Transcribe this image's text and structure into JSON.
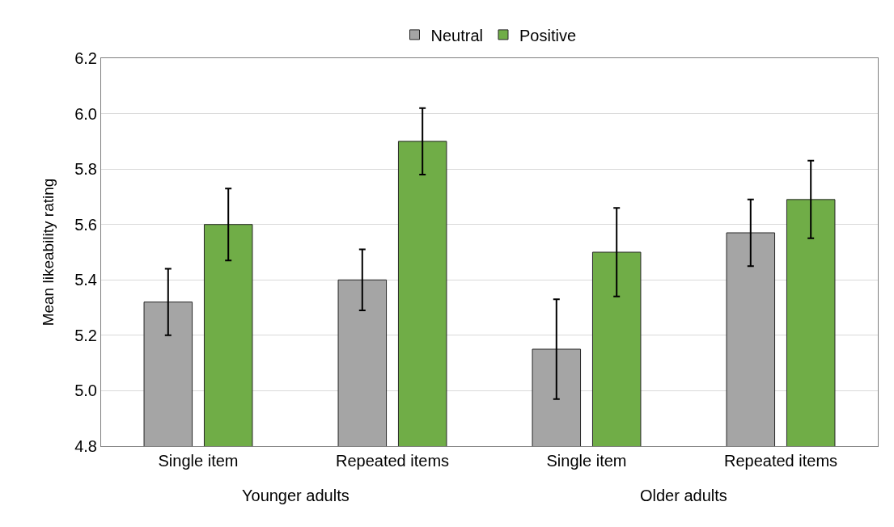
{
  "chart_data": {
    "type": "bar",
    "ylabel": "Mean likeability rating",
    "categories": [
      "Single item",
      "Repeated items",
      "Single item",
      "Repeated items"
    ],
    "series": [
      {
        "name": "Neutral",
        "color": "#a5a5a5",
        "values": [
          5.32,
          5.4,
          5.15,
          5.57
        ],
        "errors": [
          0.12,
          0.11,
          0.18,
          0.12
        ]
      },
      {
        "name": "Positive",
        "color": "#70ad47",
        "values": [
          5.6,
          5.9,
          5.5,
          5.69
        ],
        "errors": [
          0.13,
          0.12,
          0.16,
          0.14
        ]
      }
    ],
    "ylim": [
      4.8,
      6.2
    ],
    "yticks": [
      4.8,
      {
        "value": 5.0,
        "label": "5.0"
      },
      5.2,
      5.4,
      5.6,
      5.8,
      {
        "value": 6.0,
        "label": "6.0"
      },
      6.2
    ],
    "grid": "y",
    "legend": "top",
    "annotations": [
      "Younger adults",
      "Older adults"
    ]
  }
}
